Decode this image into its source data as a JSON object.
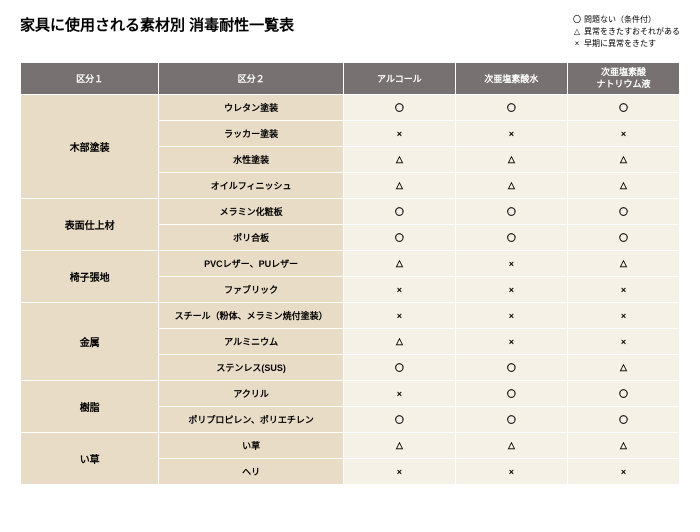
{
  "title": "家具に使用される素材別 消毒耐性一覧表",
  "legend": [
    {
      "sym": "〇",
      "text": "問題ない（条件付）"
    },
    {
      "sym": "△",
      "text": "異常をきたすおそれがある"
    },
    {
      "sym": "×",
      "text": "早期に異常をきたす"
    }
  ],
  "columns": [
    "区分１",
    "区分２",
    "アルコール",
    "次亜塩素酸水",
    "次亜塩素酸\nナトリウム液"
  ],
  "groups": [
    {
      "cat": "木部塗装",
      "rows": [
        {
          "label": "ウレタン塗装",
          "v": [
            "〇",
            "〇",
            "〇"
          ]
        },
        {
          "label": "ラッカー塗装",
          "v": [
            "×",
            "×",
            "×"
          ]
        },
        {
          "label": "水性塗装",
          "v": [
            "△",
            "△",
            "△"
          ]
        },
        {
          "label": "オイルフィニッシュ",
          "v": [
            "△",
            "△",
            "△"
          ]
        }
      ]
    },
    {
      "cat": "表面仕上材",
      "rows": [
        {
          "label": "メラミン化粧板",
          "v": [
            "〇",
            "〇",
            "〇"
          ]
        },
        {
          "label": "ポリ合板",
          "v": [
            "〇",
            "〇",
            "〇"
          ]
        }
      ]
    },
    {
      "cat": "椅子張地",
      "rows": [
        {
          "label": "PVCレザー、PUレザー",
          "v": [
            "△",
            "×",
            "△"
          ]
        },
        {
          "label": "ファブリック",
          "v": [
            "×",
            "×",
            "×"
          ]
        }
      ]
    },
    {
      "cat": "金属",
      "rows": [
        {
          "label": "スチール（粉体、メラミン焼付塗装）",
          "v": [
            "×",
            "×",
            "×"
          ]
        },
        {
          "label": "アルミニウム",
          "v": [
            "△",
            "×",
            "×"
          ]
        },
        {
          "label": "ステンレス(SUS)",
          "v": [
            "〇",
            "〇",
            "△"
          ]
        }
      ]
    },
    {
      "cat": "樹脂",
      "rows": [
        {
          "label": "アクリル",
          "v": [
            "×",
            "〇",
            "〇"
          ]
        },
        {
          "label": "ポリプロピレン、ポリエチレン",
          "v": [
            "〇",
            "〇",
            "〇"
          ]
        }
      ]
    },
    {
      "cat": "い草",
      "rows": [
        {
          "label": "い草",
          "v": [
            "△",
            "△",
            "△"
          ]
        },
        {
          "label": "ヘリ",
          "v": [
            "×",
            "×",
            "×"
          ]
        }
      ]
    }
  ]
}
